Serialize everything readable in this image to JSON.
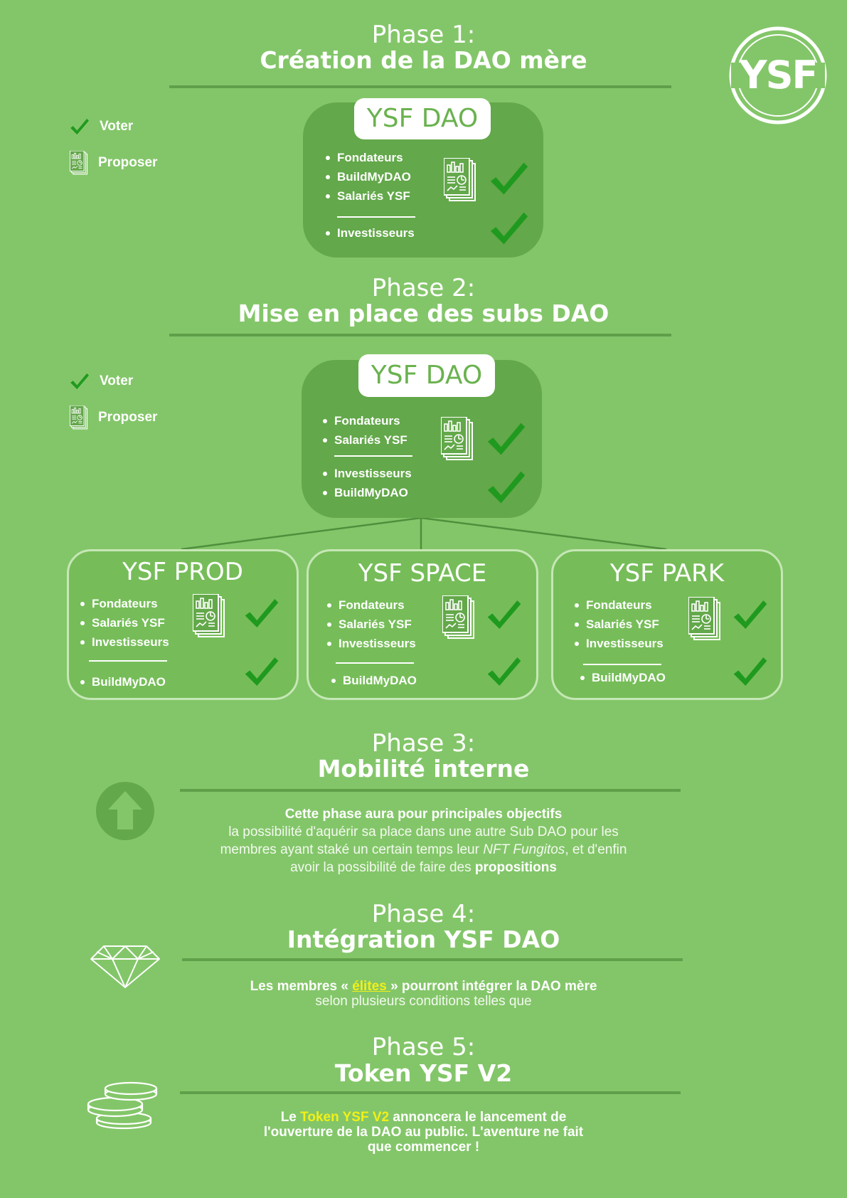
{
  "logo": {
    "text": "YSF"
  },
  "legend": {
    "vote": "Voter",
    "propose": "Proposer"
  },
  "phase1": {
    "number": "Phase 1:",
    "title": "Création de la DAO mère",
    "dao": {
      "name": "YSF DAO",
      "members_top": [
        "Fondateurs",
        "BuildMyDAO",
        "Salariés YSF"
      ],
      "members_bottom": [
        "Investisseurs"
      ]
    }
  },
  "phase2": {
    "number": "Phase 2:",
    "title": "Mise en place des subs DAO",
    "dao": {
      "name": "YSF DAO",
      "members_top": [
        "Fondateurs",
        "Salariés YSF"
      ],
      "members_bottom": [
        "Investisseurs",
        "BuildMyDAO"
      ]
    },
    "subs": [
      {
        "name": "YSF PROD",
        "members_top": [
          "Fondateurs",
          "Salariés YSF",
          "Investisseurs"
        ],
        "members_bottom": [
          "BuildMyDAO"
        ]
      },
      {
        "name": "YSF SPACE",
        "members_top": [
          "Fondateurs",
          "Salariés YSF",
          "Investisseurs"
        ],
        "members_bottom": [
          "BuildMyDAO"
        ]
      },
      {
        "name": "YSF PARK",
        "members_top": [
          "Fondateurs",
          "Salariés YSF",
          "Investisseurs"
        ],
        "members_bottom": [
          "BuildMyDAO"
        ]
      }
    ]
  },
  "phase3": {
    "number": "Phase 3:",
    "title": "Mobilité interne",
    "lead": "Cette phase aura pour principales objectifs",
    "line1": "la possibilité d'aquérir sa place dans une autre Sub DAO pour les",
    "line2_a": "membres ayant staké un certain temps leur ",
    "line2_em": "NFT Fungitos",
    "line2_b": ", et d'enfin",
    "line3_a": "avoir la possibilité de faire des ",
    "line3_b": "propositions"
  },
  "phase4": {
    "number": "Phase 4:",
    "title": "Intégration YSF DAO",
    "lead_a": "Les membres « ",
    "lead_link": "élites ",
    "lead_b": "» pourront intégrer la DAO mère",
    "line2": "selon plusieurs conditions telles que"
  },
  "phase5": {
    "number": "Phase 5:",
    "title": "Token YSF V2",
    "line1_a": "Le ",
    "line1_hl": "Token YSF V2",
    "line1_b": " annoncera le lancement de",
    "line2": "l'ouverture de la DAO au public. L'aventure ne fait",
    "line3": "que commencer !"
  },
  "colors": {
    "background": "#83c669",
    "box": "#63a84a",
    "check": "#1f9a1f",
    "highlight": "#f2f016"
  }
}
